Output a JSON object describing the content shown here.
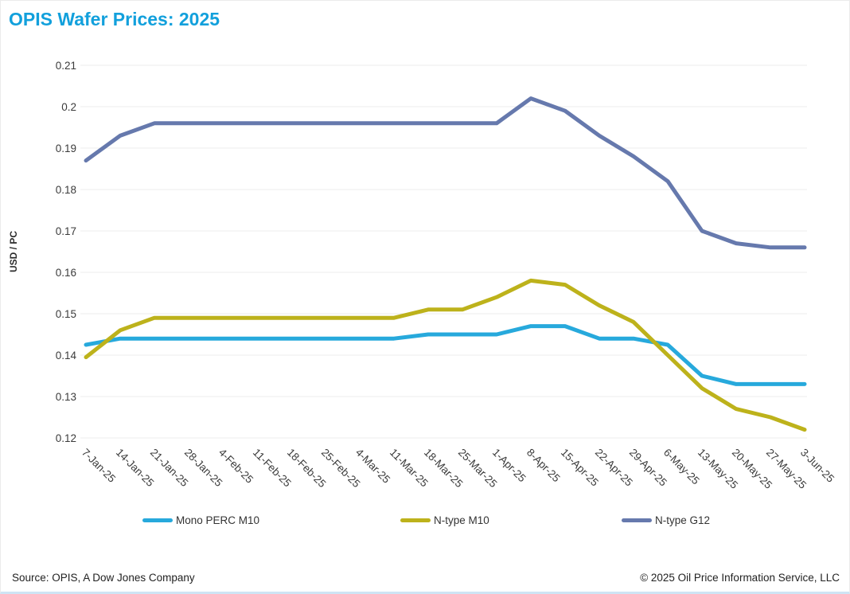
{
  "title": "OPIS Wafer Prices: 2025",
  "colors": {
    "title_accent": "#12a0dc",
    "grid": "#ececec",
    "axis_text": "#3b3b3b",
    "mono_perc_m10": "#27a9dc",
    "n_type_m10": "#bdb21b",
    "n_type_g12": "#6679ad"
  },
  "footer": {
    "source": "Source: OPIS, A Dow Jones Company",
    "copyright": "© 2025 Oil Price Information Service, LLC"
  },
  "chart_data": {
    "type": "line",
    "title": "OPIS Wafer Prices: 2025",
    "xlabel": "",
    "ylabel": "USD / PC",
    "ylim": [
      0.12,
      0.21
    ],
    "ytick_step": 0.01,
    "grid": "horizontal-only",
    "legend_position": "bottom",
    "categories": [
      "7-Jan-25",
      "14-Jan-25",
      "21-Jan-25",
      "28-Jan-25",
      "4-Feb-25",
      "11-Feb-25",
      "18-Feb-25",
      "25-Feb-25",
      "4-Mar-25",
      "11-Mar-25",
      "18-Mar-25",
      "25-Mar-25",
      "1-Apr-25",
      "8-Apr-25",
      "15-Apr-25",
      "22-Apr-25",
      "29-Apr-25",
      "6-May-25",
      "13-May-25",
      "20-May-25",
      "27-May-25",
      "3-Jun-25"
    ],
    "series": [
      {
        "name": "Mono PERC M10",
        "color": "#27a9dc",
        "values": [
          0.1425,
          0.144,
          0.144,
          0.144,
          0.144,
          0.144,
          0.144,
          0.144,
          0.144,
          0.144,
          0.145,
          0.145,
          0.145,
          0.147,
          0.147,
          0.144,
          0.144,
          0.1425,
          0.135,
          0.133,
          0.133,
          0.133
        ]
      },
      {
        "name": "N-type M10",
        "color": "#bdb21b",
        "values": [
          0.1395,
          0.146,
          0.149,
          0.149,
          0.149,
          0.149,
          0.149,
          0.149,
          0.149,
          0.149,
          0.151,
          0.151,
          0.154,
          0.158,
          0.157,
          0.152,
          0.148,
          0.14,
          0.132,
          0.127,
          0.125,
          0.122
        ]
      },
      {
        "name": "N-type G12",
        "color": "#6679ad",
        "values": [
          0.187,
          0.193,
          0.196,
          0.196,
          0.196,
          0.196,
          0.196,
          0.196,
          0.196,
          0.196,
          0.196,
          0.196,
          0.196,
          0.202,
          0.199,
          0.193,
          0.188,
          0.182,
          0.17,
          0.167,
          0.166,
          0.166
        ]
      }
    ]
  }
}
